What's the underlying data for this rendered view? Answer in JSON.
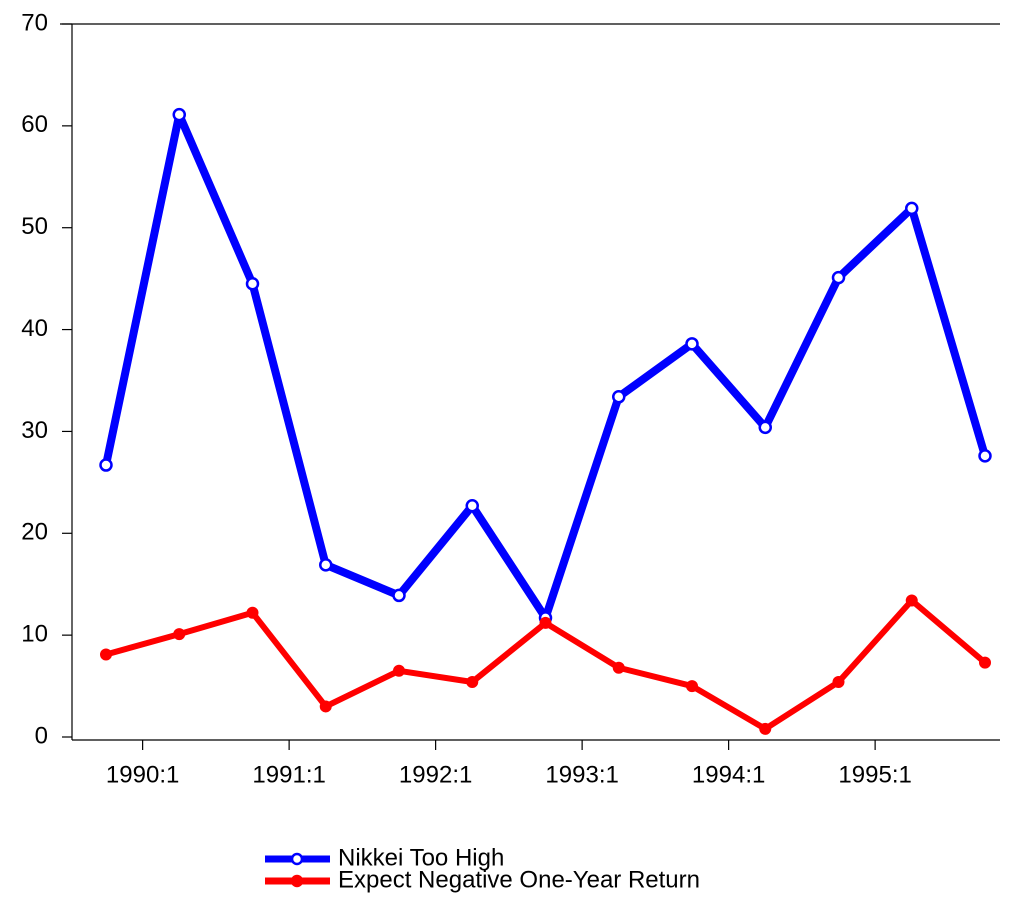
{
  "chart_data": {
    "type": "line",
    "categories": [
      null,
      "1990:1",
      null,
      "1991:1",
      null,
      "1992:1",
      null,
      "1993:1",
      null,
      "1994:1",
      null,
      "1995:1",
      null
    ],
    "series": [
      {
        "name": "Nikkei Too High",
        "color": "#0000ff",
        "values": [
          26.7,
          61.1,
          44.5,
          16.9,
          13.9,
          22.7,
          11.7,
          33.4,
          38.6,
          30.4,
          45.1,
          51.9,
          27.6
        ]
      },
      {
        "name": "Expect Negative One-Year Return",
        "color": "#ff0000",
        "values": [
          8.1,
          10.1,
          12.2,
          3.0,
          6.5,
          5.4,
          11.2,
          6.8,
          5.0,
          0.8,
          5.4,
          13.4,
          7.3
        ]
      }
    ],
    "ylim": [
      0,
      70
    ],
    "yticks": [
      0,
      10,
      20,
      30,
      40,
      50,
      60,
      70
    ]
  }
}
